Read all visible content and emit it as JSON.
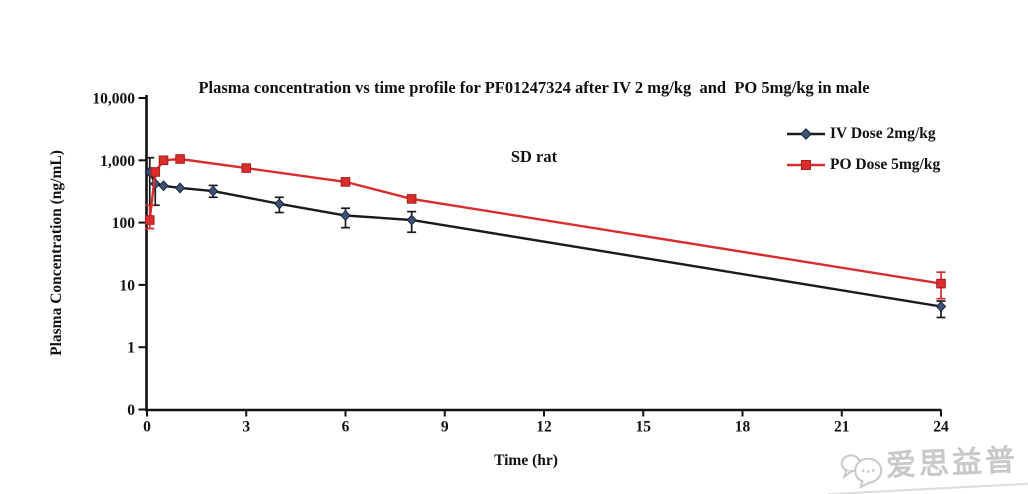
{
  "title": {
    "line1": "Plasma concentration vs time profile for PF01247324 after IV 2 mg/kg  and  PO 5mg/kg in male",
    "line2": "SD rat"
  },
  "watermark": {
    "text": "爱思益普"
  },
  "chart_data": {
    "type": "line",
    "x_scale": "linear",
    "y_scale": "log",
    "title": "Plasma concentration vs time profile for PF01247324 after IV 2 mg/kg and PO 5mg/kg in male SD rat",
    "xlabel": "Time (hr)",
    "ylabel": "Plasma Concentration (ng/mL)",
    "xlim": [
      0,
      24
    ],
    "ylim": [
      0.1,
      10000
    ],
    "grid": false,
    "legend_position": "upper right",
    "xticks": [
      0,
      3,
      6,
      9,
      12,
      15,
      18,
      21,
      24
    ],
    "yticks": [
      {
        "label": "10,000",
        "value": 10000
      },
      {
        "label": "1,000",
        "value": 1000
      },
      {
        "label": "100",
        "value": 100
      },
      {
        "label": "10",
        "value": 10
      },
      {
        "label": "1",
        "value": 1
      },
      {
        "label": "0",
        "value": 0.1
      }
    ],
    "series": [
      {
        "name": "IV Dose 2mg/kg",
        "marker": "diamond",
        "line_color": "#1b1b1b",
        "marker_fill": "#3c5375",
        "marker_stroke": "#17233a",
        "error_color": "#1b1b1b",
        "points": [
          {
            "t": 0.083,
            "c": 650,
            "lo": 120,
            "hi": 1100
          },
          {
            "t": 0.25,
            "c": 420,
            "lo": 190,
            "hi": 650
          },
          {
            "t": 0.5,
            "c": 390
          },
          {
            "t": 1,
            "c": 360
          },
          {
            "t": 2,
            "c": 320,
            "lo": 255,
            "hi": 395
          },
          {
            "t": 4,
            "c": 200,
            "lo": 145,
            "hi": 255
          },
          {
            "t": 6,
            "c": 130,
            "lo": 83,
            "hi": 170
          },
          {
            "t": 8,
            "c": 110,
            "lo": 70,
            "hi": 150
          },
          {
            "t": 24,
            "c": 4.5,
            "lo": 3,
            "hi": 5.5
          }
        ]
      },
      {
        "name": "PO Dose 5mg/kg",
        "marker": "square",
        "line_color": "#d92c2c",
        "marker_fill": "#d92c2c",
        "marker_stroke": "#a81d1d",
        "error_color": "#d92c2c",
        "points": [
          {
            "t": 0.083,
            "c": 110,
            "lo": 80,
            "hi": 190
          },
          {
            "t": 0.25,
            "c": 650
          },
          {
            "t": 0.5,
            "c": 1000
          },
          {
            "t": 1,
            "c": 1050
          },
          {
            "t": 3,
            "c": 750
          },
          {
            "t": 6,
            "c": 450
          },
          {
            "t": 8,
            "c": 240
          },
          {
            "t": 24,
            "c": 10.5,
            "lo": 6,
            "hi": 16
          }
        ]
      }
    ]
  }
}
